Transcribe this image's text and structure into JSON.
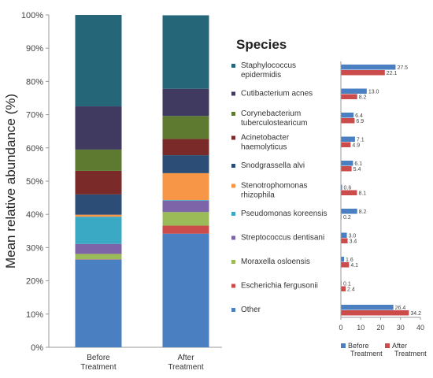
{
  "chart_data": [
    {
      "type": "bar",
      "stacked": true,
      "categories": [
        "Before\nTreatment",
        "After\nTreatment"
      ],
      "ylabel": "Mean relative abundance (%)",
      "ylim": [
        0,
        100
      ],
      "yticks": [
        "0%",
        "10%",
        "20%",
        "30%",
        "40%",
        "50%",
        "60%",
        "70%",
        "80%",
        "90%",
        "100%"
      ],
      "grid": false,
      "series": [
        {
          "name": "Other",
          "color": "#4a7fc1",
          "values": [
            26.4,
            34.2
          ]
        },
        {
          "name": "Escherichia fergusonii",
          "color": "#cc4b4b",
          "values": [
            0.1,
            2.4
          ]
        },
        {
          "name": "Moraxella osloensis",
          "color": "#9bbb59",
          "values": [
            1.6,
            4.1
          ]
        },
        {
          "name": "Streptococcus dentisani",
          "color": "#7d64a8",
          "values": [
            3.0,
            3.4
          ]
        },
        {
          "name": "Pseudomonas koreensis",
          "color": "#3aa9c4",
          "values": [
            8.2,
            0.2
          ]
        },
        {
          "name": "Stenotrophomonas rhizophila",
          "color": "#f79646",
          "values": [
            0.6,
            8.1
          ]
        },
        {
          "name": "Snodgrassella alvi",
          "color": "#2c4d75",
          "values": [
            6.1,
            5.4
          ]
        },
        {
          "name": "Acinetobacter haemolyticus",
          "color": "#7b2a2a",
          "values": [
            7.1,
            4.9
          ]
        },
        {
          "name": "Corynebacterium tuberculostearicum",
          "color": "#5e7a30",
          "values": [
            6.4,
            6.9
          ]
        },
        {
          "name": "Cutibacterium acnes",
          "color": "#403a60",
          "values": [
            13.0,
            8.2
          ]
        },
        {
          "name": "Staphylococcus epidermidis",
          "color": "#256779",
          "values": [
            27.5,
            22.1
          ]
        }
      ]
    },
    {
      "type": "bar",
      "orientation": "horizontal",
      "title": "Species",
      "categories": [
        "Staphylococcus\nepidermidis",
        "Cutibacterium acnes",
        "Corynebacterium\ntuberculostearicum",
        "Acinetobacter\nhaemolyticus",
        "Snodgrassella alvi",
        "Stenotrophomonas\nrhizophila",
        "Pseudomonas koreensis",
        "Streptococcus dentisani",
        "Moraxella osloensis",
        "Escherichia fergusonii",
        "Other"
      ],
      "category_colors": [
        "#256779",
        "#403a60",
        "#5e7a30",
        "#7b2a2a",
        "#2c4d75",
        "#f79646",
        "#3aa9c4",
        "#7d64a8",
        "#9bbb59",
        "#cc4b4b",
        "#4a7fc1"
      ],
      "xlim": [
        0,
        40
      ],
      "xticks": [
        "0",
        "10",
        "20",
        "30",
        "40"
      ],
      "legend_position": "bottom",
      "series": [
        {
          "name": "Before\nTreatment",
          "color": "#4a7fc1",
          "values": [
            27.5,
            13.0,
            6.4,
            7.1,
            6.1,
            0.6,
            8.2,
            3.0,
            1.6,
            0.1,
            26.4
          ],
          "labels": [
            "27.5",
            "13.0",
            "6.4",
            "7.1",
            "6.1",
            "0.6",
            "8.2",
            "3.0",
            "1.6",
            "0.1",
            "26.4"
          ]
        },
        {
          "name": "After\nTreatment",
          "color": "#cc4b4b",
          "values": [
            22.1,
            8.2,
            6.9,
            4.9,
            5.4,
            8.1,
            0.2,
            3.4,
            4.1,
            2.4,
            34.2
          ],
          "labels": [
            "22.1",
            "8.2",
            "6.9",
            "4.9",
            "5.4",
            "8.1",
            "0.2",
            "3.4",
            "4.1",
            "2.4",
            "34.2"
          ]
        }
      ]
    }
  ]
}
